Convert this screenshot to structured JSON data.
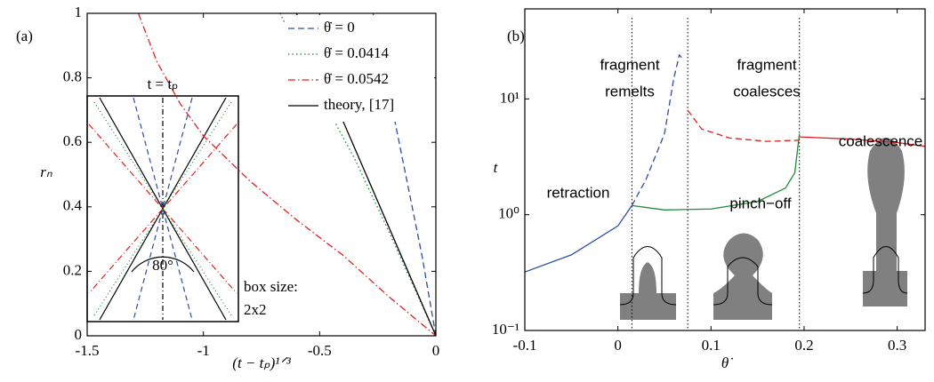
{
  "chart_data": [
    {
      "type": "line",
      "panel_label": "(a)",
      "x_label": "(t − tₚ)¹ᐟ³",
      "y_label": "rₙ",
      "xlim": [
        -1.5,
        0
      ],
      "ylim": [
        0,
        1
      ],
      "xticks": [
        -1.5,
        -1,
        -0.5,
        0
      ],
      "yticks": [
        0,
        0.2,
        0.4,
        0.6,
        0.8,
        1
      ],
      "legend": "upper right",
      "series": [
        {
          "name": "θ̇ = 0",
          "color": "#2a4fa0",
          "style": "dashed",
          "x": [
            -0.27,
            -0.2,
            -0.13,
            -0.06,
            0
          ],
          "values": [
            1,
            0.75,
            0.5,
            0.25,
            0
          ]
        },
        {
          "name": "θ̇ = 0.0414",
          "color": "#1e8a3c",
          "style": "dotted",
          "x": [
            -0.67,
            -0.5,
            -0.35,
            -0.2,
            0
          ],
          "values": [
            1,
            0.75,
            0.55,
            0.32,
            0
          ]
        },
        {
          "name": "θ̇ = 0.0542",
          "color": "#e02020",
          "style": "dashdot",
          "x": [
            -1.28,
            -1.2,
            -1.1,
            -1,
            -0.8,
            -0.6,
            -0.4,
            -0.2,
            0
          ],
          "values": [
            1,
            0.85,
            0.72,
            0.62,
            0.48,
            0.36,
            0.25,
            0.12,
            0
          ]
        },
        {
          "name": "theory, [17]",
          "color": "#000000",
          "style": "solid",
          "x": [
            -0.6,
            0
          ],
          "values": [
            1,
            0
          ]
        }
      ],
      "annotations": [
        "t = tₚ",
        "80°",
        "box size:",
        "2x2"
      ]
    },
    {
      "type": "line",
      "panel_label": "(b)",
      "x_label": "θ̇",
      "y_label": "t",
      "log_y": true,
      "xlim": [
        -0.1,
        0.33
      ],
      "ylim": [
        0.1,
        60
      ],
      "xticks": [
        -0.1,
        0,
        0.1,
        0.2,
        0.3
      ],
      "yticks": [
        {
          "value": 0.1,
          "label": "10⁻¹"
        },
        {
          "value": 1,
          "label": "10⁰"
        },
        {
          "value": 10,
          "label": "10¹"
        }
      ],
      "vlines": [
        0.015,
        0.075,
        0.195
      ],
      "series": [
        {
          "color": "#2a4fa0",
          "style": "solid",
          "x": [
            -0.1,
            -0.05,
            0,
            0.015
          ],
          "values": [
            0.32,
            0.45,
            0.8,
            1.2
          ]
        },
        {
          "color": "#2a4fa0",
          "style": "dashed",
          "x": [
            0.015,
            0.03,
            0.05,
            0.06,
            0.066,
            0.07
          ],
          "values": [
            1.2,
            2,
            5,
            15,
            24,
            22
          ]
        },
        {
          "color": "#1e8a3c",
          "style": "solid",
          "x": [
            0.015,
            0.05,
            0.1,
            0.15,
            0.18,
            0.19,
            0.195
          ],
          "values": [
            1.2,
            1.1,
            1.12,
            1.3,
            1.7,
            2.3,
            5
          ]
        },
        {
          "color": "#e02020",
          "style": "dashed",
          "x": [
            0.075,
            0.09,
            0.12,
            0.16,
            0.195
          ],
          "values": [
            8,
            5.5,
            4.6,
            4.3,
            4.4
          ]
        },
        {
          "color": "#e02020",
          "style": "solid",
          "x": [
            0.195,
            0.25,
            0.3,
            0.33
          ],
          "values": [
            4.7,
            4.5,
            4.2,
            3.9
          ]
        }
      ],
      "annotations": [
        [
          "fragment",
          "remelts"
        ],
        [
          "fragment",
          "coalesces"
        ],
        [
          "coalescence"
        ],
        [
          "retraction"
        ],
        [
          "pinch−off"
        ]
      ]
    }
  ]
}
